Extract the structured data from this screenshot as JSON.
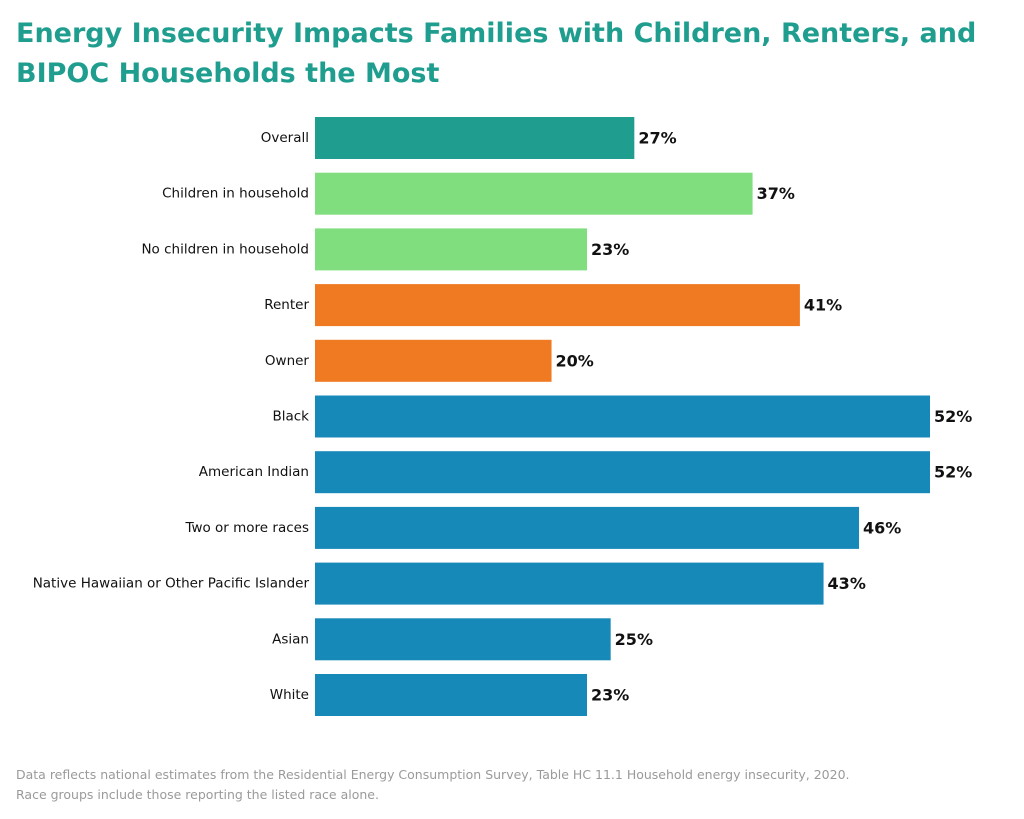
{
  "chart_data": {
    "type": "bar",
    "orientation": "horizontal",
    "title": "Energy Insecurity Impacts Families with Children, Renters, and BIPOC Households the Most",
    "categories": [
      "Overall",
      "Children in household",
      "No children in household",
      "Renter",
      "Owner",
      "Black",
      "American Indian",
      "Two or more races",
      "Native Hawaiian or Other Pacific Islander",
      "Asian",
      "White"
    ],
    "values": [
      27,
      37,
      23,
      41,
      20,
      52,
      52,
      46,
      43,
      25,
      23
    ],
    "value_labels": [
      "27%",
      "37%",
      "23%",
      "41%",
      "20%",
      "52%",
      "52%",
      "46%",
      "43%",
      "25%",
      "23%"
    ],
    "colors": [
      "#1f9e8f",
      "#80de7e",
      "#80de7e",
      "#f07a22",
      "#f07a22",
      "#1789b8",
      "#1789b8",
      "#1789b8",
      "#1789b8",
      "#1789b8",
      "#1789b8"
    ],
    "xlim": [
      0,
      52
    ],
    "xlabel": "",
    "ylabel": "",
    "grid": false,
    "legend": "none"
  },
  "footnote": {
    "line1": "Data reflects national estimates from the Residential Energy Consumption Survey, Table HC 11.1 Household energy insecurity, 2020.",
    "line2": "Race groups include those reporting the listed race alone."
  }
}
